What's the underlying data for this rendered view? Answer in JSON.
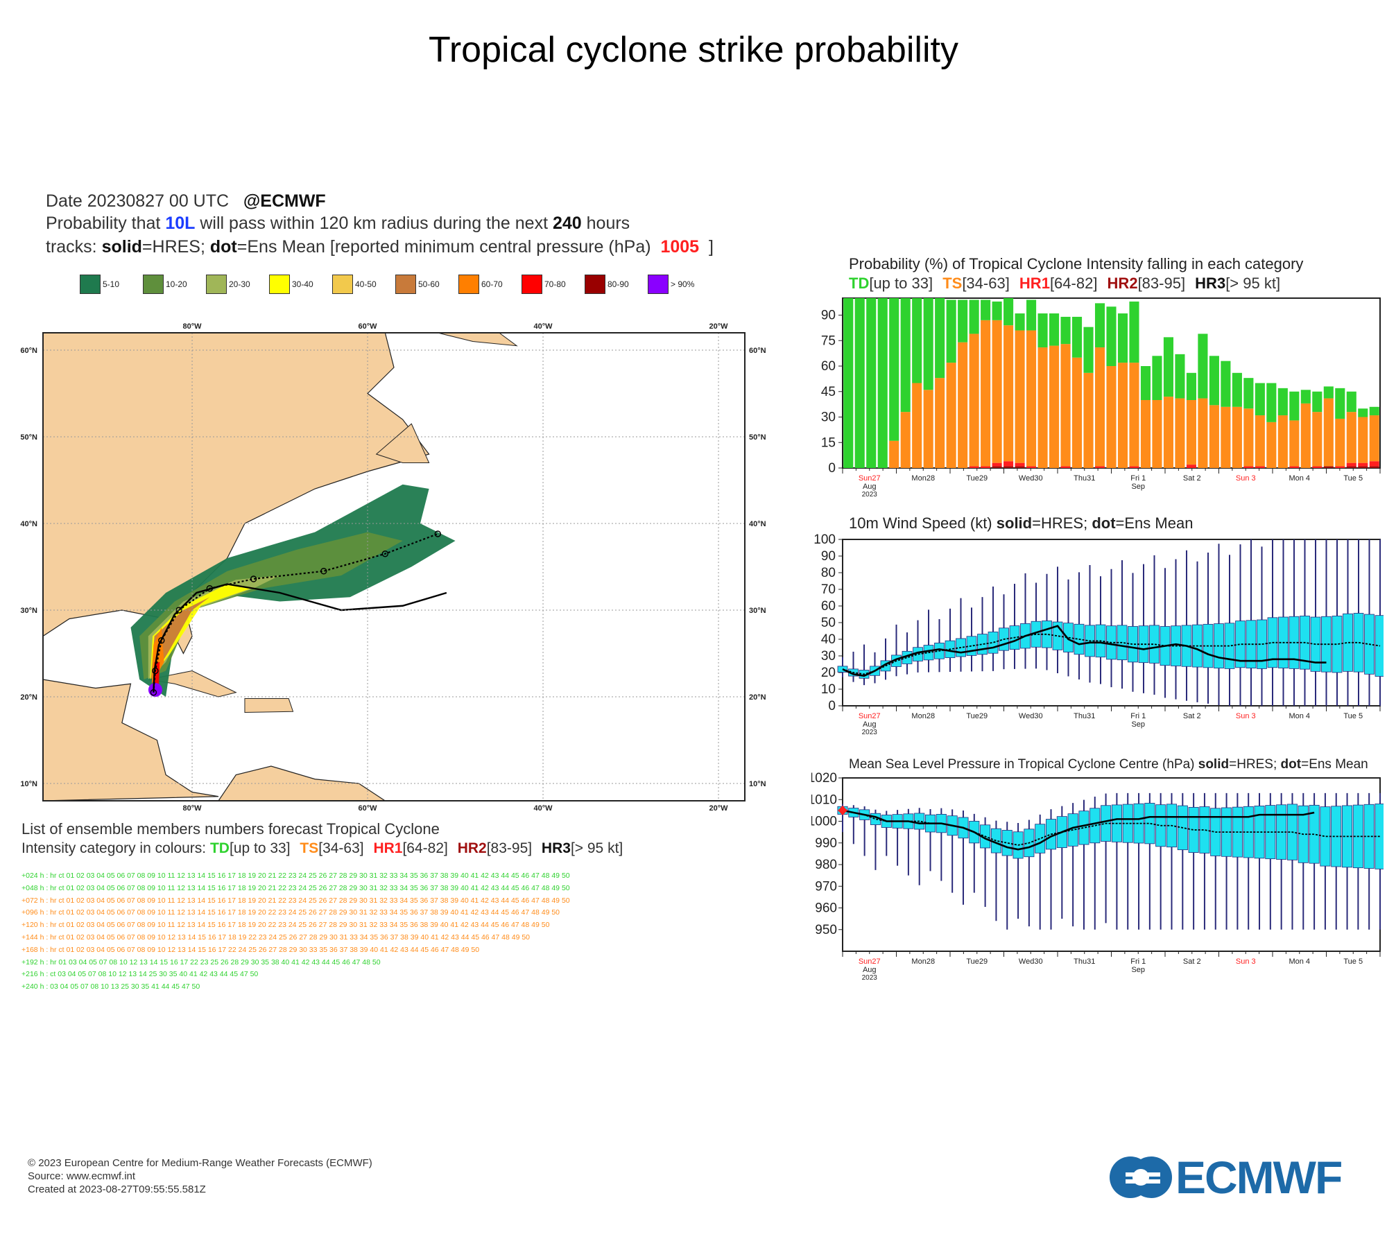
{
  "title": "Tropical cyclone strike probability",
  "header": {
    "date": "Date 20230827 00 UTC",
    "brand": "@ECMWF",
    "prob_prefix": "Probability that",
    "storm_id": "10L",
    "prob_mid": "will pass within 120 km radius during the next",
    "hours": "240",
    "prob_suffix": "hours",
    "tracks_prefix": "tracks:",
    "tracks_solid": "solid",
    "tracks_mid": "=HRES;",
    "tracks_dot": "dot",
    "tracks_rest": "=Ens Mean [reported minimum central pressure (hPa)",
    "pressure": "1005",
    "tracks_end": "]"
  },
  "legend": [
    {
      "label": "5-10",
      "color": "#1f7a4e"
    },
    {
      "label": "10-20",
      "color": "#5f8f3c"
    },
    {
      "label": "20-30",
      "color": "#a0b658"
    },
    {
      "label": "30-40",
      "color": "#ffff00"
    },
    {
      "label": "40-50",
      "color": "#f2c94c"
    },
    {
      "label": "50-60",
      "color": "#c87a3a"
    },
    {
      "label": "60-70",
      "color": "#ff7f00"
    },
    {
      "label": "70-80",
      "color": "#ff0000"
    },
    {
      "label": "80-90",
      "color": "#990000"
    },
    {
      "label": "> 90%",
      "color": "#8a00ff"
    }
  ],
  "map": {
    "lon_labels": [
      "80°W",
      "60°W",
      "40°W",
      "20°W"
    ],
    "lat_labels": [
      "60°N",
      "50°N",
      "40°N",
      "30°N",
      "20°N",
      "10°N"
    ],
    "land_color": "#f5cf9e",
    "hres_pressures": [],
    "track_labels": []
  },
  "ensemble_list": {
    "title": "List of ensemble members numbers forecast Tropical Cyclone",
    "category_prefix": "Intensity category in colours:",
    "cats": [
      {
        "name": "TD",
        "range": "[up to 33]",
        "color": "#2fd22f"
      },
      {
        "name": "TS",
        "range": "[34-63]",
        "color": "#ff8c1a"
      },
      {
        "name": "HR1",
        "range": "[64-82]",
        "color": "#ff2020"
      },
      {
        "name": "HR2",
        "range": "[83-95]",
        "color": "#a01010"
      },
      {
        "name": "HR3",
        "range": "[> 95 kt]",
        "color": "#111111"
      }
    ],
    "rows": [
      "+024 h : hr ct 01 02 03 04 05 06 07 08 09 10 11 12 13 14 15 16 17 18 19 20 21 22 23 24 25 26 27 28 29 30 31 32 33 34 35 36 37 38 39 40 41 42 43 44 45 46 47 48 49 50",
      "+048 h : hr ct 01 02 03 04 05 06 07 08 09 10 11 12 13 14 15 16 17 18 19 20 21 22 23 24 25 26 27 28 29 30 31 32 33 34 35 36 37 38 39 40 41 42 43 44 45 46 47 48 49 50",
      "+072 h : hr ct 01 02 03 04 05 06 07 08 09 10 11 12 13 14 15 16 17 18 19 20 21 22 23 24 25 26 27 28 29 30 31 32 33 34 35 36 37 38 39 40 41 42 43 44 45 46 47 48 49 50",
      "+096 h : hr ct 01 02 03 04 05 06 07 08 09 10 11 12 13 14 15 16 17 18 19 20 22 23 24 25 26 27 28 29 30 31 32 33 34 35 36 37 38 39 40 41 42 43 44 45 46 47 48 49 50",
      "+120 h : hr ct 01 02 03 04 05 06 07 08 09 10 11 12 13 14 15 16 17 18 19 20 22 23 24 25 26 27 28 29 30 31 32 33 34 35 36 38 39 40 41 42 43 44 45 46 47 48 49 50",
      "+144 h : hr ct 01 02 03 04 05 06 07 08 09 10 12 13 14 15 16 17 18 19 22 23 24 25 26 27 28 29 30 31 33 34 35 36 37 38 39 40 41 42 43 44 45 46 47 48 49 50",
      "+168 h : hr ct 01 02 03 04 05 06 07 08 09 10 12 13 14 15 16 17 22 24 25 26 27 28 29 30 33 35 36 37 38 39 40 41 42 43 44 45 46 47 48 49 50",
      "+192 h : hr 01 03 04 05 07 08 10 12 13 14 15 16 17 22 23 25 26 28 29 30 35 38 40 41 42 43 44 45 46 47 48 50",
      "+216 h : ct 03 04 05 07 08 10 12 13 14 25 30 35 40 41 42 43 44 45 47 50",
      "+240 h : 03 04 05 07 08 10 13 25 30 35 41 44 45 47 50"
    ]
  },
  "charts": {
    "x_labels": [
      {
        "day": "Sun27",
        "sub1": "Aug",
        "sub2": "2023",
        "red": true
      },
      {
        "day": "Mon28",
        "sub1": "",
        "sub2": "",
        "red": false
      },
      {
        "day": "Tue29",
        "sub1": "",
        "sub2": "",
        "red": false
      },
      {
        "day": "Wed30",
        "sub1": "",
        "sub2": "",
        "red": false
      },
      {
        "day": "Thu31",
        "sub1": "",
        "sub2": "",
        "red": false
      },
      {
        "day": "Fri 1",
        "sub1": "Sep",
        "sub2": "",
        "red": false
      },
      {
        "day": "Sat 2",
        "sub1": "",
        "sub2": "",
        "red": false
      },
      {
        "day": "Sun 3",
        "sub1": "",
        "sub2": "",
        "red": true
      },
      {
        "day": "Mon 4",
        "sub1": "",
        "sub2": "",
        "red": false
      },
      {
        "day": "Tue 5",
        "sub1": "",
        "sub2": "",
        "red": false
      }
    ],
    "prob": {
      "title": "Probability (%) of Tropical Cyclone Intensity falling in each category",
      "cats": [
        {
          "name": "TD",
          "range": "[up to 33]",
          "color": "#2fd22f"
        },
        {
          "name": "TS",
          "range": "[34-63]",
          "color": "#ff8c1a"
        },
        {
          "name": "HR1",
          "range": "[64-82]",
          "color": "#ff2020"
        },
        {
          "name": "HR2",
          "range": "[83-95]",
          "color": "#a01010"
        },
        {
          "name": "HR3",
          "range": "[> 95 kt]",
          "color": "#111111"
        }
      ]
    },
    "wind": {
      "title_prefix": "10m Wind Speed (kt)",
      "solid": "solid",
      "mid": "=HRES;",
      "dot": "dot",
      "end": "=Ens Mean"
    },
    "mslp": {
      "title_prefix": "Mean Sea Level Pressure in Tropical Cyclone Centre (hPa)",
      "solid": "solid",
      "mid": "=HRES;",
      "dot": "dot",
      "end": "=Ens Mean"
    }
  },
  "chart_data": [
    {
      "type": "bar",
      "title": "Probability (%) of Tropical Cyclone Intensity falling in each category",
      "ylim": [
        0,
        100
      ],
      "yticks": [
        0,
        15,
        30,
        45,
        60,
        75,
        90
      ],
      "series": [
        {
          "name": "TD",
          "color": "#2fd22f",
          "values": [
            100,
            100,
            100,
            100,
            84,
            67,
            50,
            54,
            47,
            37,
            25,
            20,
            12,
            11,
            16,
            10,
            18,
            20,
            19,
            16,
            24,
            27,
            26,
            35,
            29,
            36,
            20,
            26,
            35,
            26,
            16,
            38,
            29,
            27,
            20,
            18,
            19,
            23,
            16,
            17,
            8,
            12,
            7,
            18,
            12,
            5,
            5
          ]
        },
        {
          "name": "TS",
          "color": "#ff8c1a",
          "values": [
            0,
            0,
            0,
            0,
            16,
            33,
            50,
            46,
            53,
            62,
            74,
            78,
            86,
            84,
            80,
            78,
            80,
            71,
            72,
            72,
            65,
            56,
            70,
            60,
            62,
            61,
            40,
            40,
            42,
            41,
            38,
            41,
            37,
            36,
            36,
            34,
            30,
            27,
            31,
            27,
            38,
            32,
            40,
            28,
            30,
            27,
            27
          ]
        },
        {
          "name": "HR1",
          "color": "#ff2020",
          "values": [
            0,
            0,
            0,
            0,
            0,
            0,
            0,
            0,
            0,
            0,
            0,
            1,
            1,
            2,
            3,
            2,
            1,
            0,
            0,
            1,
            0,
            0,
            1,
            0,
            0,
            1,
            0,
            0,
            0,
            0,
            2,
            0,
            0,
            0,
            0,
            1,
            1,
            0,
            0,
            1,
            0,
            1,
            0,
            1,
            2,
            2,
            3
          ]
        },
        {
          "name": "HR2",
          "color": "#a01010",
          "values": [
            0,
            0,
            0,
            0,
            0,
            0,
            0,
            0,
            0,
            0,
            0,
            0,
            0,
            1,
            1,
            1,
            0,
            0,
            0,
            0,
            0,
            0,
            0,
            0,
            0,
            0,
            0,
            0,
            0,
            0,
            0,
            0,
            0,
            0,
            0,
            0,
            0,
            0,
            0,
            0,
            0,
            0,
            1,
            0,
            1,
            1,
            1
          ]
        }
      ]
    },
    {
      "type": "line",
      "title": "10m Wind Speed (kt) solid=HRES; dot=Ens Mean",
      "ylim": [
        0,
        100
      ],
      "yticks": [
        0,
        10,
        20,
        30,
        40,
        50,
        60,
        70,
        80,
        90,
        100
      ],
      "series": [
        {
          "name": "HRES",
          "values": [
            22,
            19,
            18,
            21,
            25,
            28,
            30,
            32,
            33,
            34,
            33,
            32,
            33,
            34,
            35,
            37,
            39,
            42,
            44,
            46,
            48,
            40,
            37,
            38,
            38,
            37,
            36,
            35,
            34,
            35,
            36,
            37,
            36,
            34,
            31,
            29,
            28,
            27,
            27,
            27,
            28,
            28,
            28,
            27,
            26,
            26
          ]
        },
        {
          "name": "Ens Mean",
          "values": [
            22,
            20,
            19,
            21,
            24,
            27,
            29,
            31,
            32,
            33,
            34,
            35,
            36,
            37,
            38,
            40,
            41,
            42,
            43,
            43,
            42,
            41,
            40,
            39,
            39,
            38,
            38,
            37,
            37,
            37,
            36,
            36,
            36,
            36,
            36,
            36,
            36,
            37,
            37,
            37,
            38,
            38,
            38,
            38,
            37,
            37,
            37,
            38,
            38,
            37,
            36
          ]
        }
      ]
    },
    {
      "type": "line",
      "title": "Mean Sea Level Pressure in Tropical Cyclone Centre (hPa) solid=HRES; dot=Ens Mean",
      "ylim": [
        940,
        1020
      ],
      "yticks": [
        950,
        960,
        970,
        980,
        990,
        1000,
        1010,
        1020
      ],
      "series": [
        {
          "name": "HRES",
          "values": [
            1005,
            1004,
            1003,
            1002,
            1000,
            1000,
            1000,
            999,
            999,
            999,
            998,
            997,
            995,
            992,
            990,
            988,
            987,
            988,
            990,
            993,
            995,
            997,
            998,
            999,
            1000,
            1001,
            1001,
            1001,
            1002,
            1002,
            1002,
            1002,
            1002,
            1002,
            1002,
            1002,
            1002,
            1002,
            1003,
            1003,
            1003,
            1003,
            1003,
            1004
          ]
        },
        {
          "name": "Ens Mean",
          "values": [
            1005,
            1004,
            1003,
            1001,
            1000,
            1000,
            1000,
            1000,
            999,
            999,
            998,
            997,
            995,
            993,
            991,
            990,
            989,
            990,
            992,
            994,
            995,
            996,
            997,
            998,
            999,
            999,
            999,
            999,
            999,
            998,
            998,
            997,
            996,
            996,
            995,
            995,
            995,
            995,
            995,
            995,
            995,
            995,
            994,
            994,
            993,
            993,
            993,
            993,
            993,
            993
          ]
        }
      ]
    }
  ],
  "footer": {
    "copyright": "© 2023 European Centre for Medium-Range Weather Forecasts (ECMWF)",
    "source": "Source: www.ecmwf.int",
    "created": "Created at 2023-08-27T09:55:55.581Z",
    "logo": "ECMWF"
  }
}
